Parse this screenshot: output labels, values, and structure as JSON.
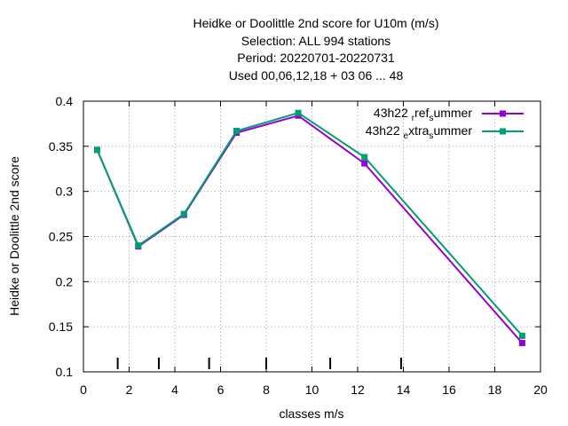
{
  "chart_data": {
    "type": "line",
    "title_lines": [
      "Heidke or Doolittle 2nd score  for U10m (m/s)",
      "Selection: ALL     994 stations",
      "Period: 20220701-20220731",
      "Used  00,06,12,18  + 03 06 ... 48"
    ],
    "xlabel": "classes m/s",
    "ylabel": "Heidke or Doolittle 2nd score",
    "xlim": [
      0,
      20
    ],
    "ylim": [
      0.1,
      0.4
    ],
    "x_ticks": [
      "0",
      "2",
      "4",
      "6",
      "8",
      "10",
      "12",
      "14",
      "16",
      "18",
      "20"
    ],
    "y_ticks": [
      "0.1",
      "0.15",
      "0.2",
      "0.25",
      "0.3",
      "0.35",
      "0.4"
    ],
    "grid": true,
    "legend_position": "top-right",
    "class_boundaries": [
      1.5,
      3.3,
      5.5,
      8.0,
      10.8,
      13.9
    ],
    "series": [
      {
        "name": "43h22_ref_summer",
        "legend": {
          "a": "43h22 ",
          "b": "ref",
          "c": "ummer"
        },
        "color": "#9400d3",
        "x": [
          0.6,
          2.4,
          4.4,
          6.7,
          9.4,
          12.3,
          19.2
        ],
        "y": [
          0.346,
          0.239,
          0.274,
          0.365,
          0.384,
          0.331,
          0.132
        ]
      },
      {
        "name": "43h22_extra_summer",
        "legend": {
          "a": "43h22 ",
          "b": "xtra",
          "c": "ummer"
        },
        "color": "#009e73",
        "x": [
          0.6,
          2.4,
          4.4,
          6.7,
          9.4,
          12.3,
          19.2
        ],
        "y": [
          0.346,
          0.24,
          0.275,
          0.367,
          0.387,
          0.338,
          0.14
        ]
      }
    ]
  }
}
